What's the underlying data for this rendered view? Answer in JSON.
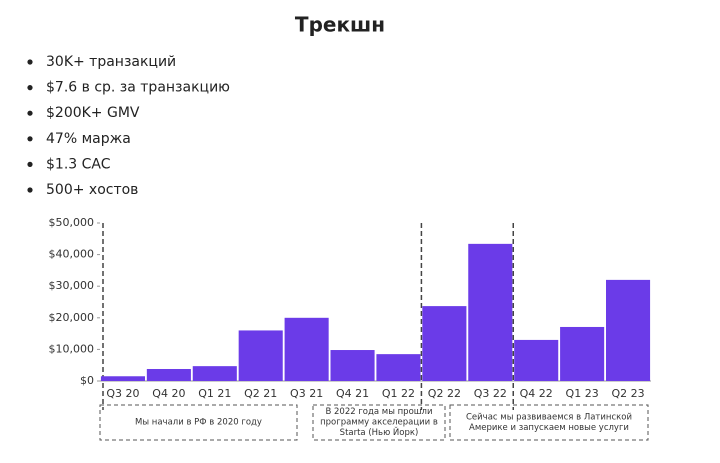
{
  "title": "Трекшн",
  "bullets": [
    "30K+ транзакций",
    "$7.6 в ср. за транзакцию",
    "$200K+ GMV",
    "47% маржа",
    "$1.3 CAC",
    "500+ хостов"
  ],
  "chart_data": {
    "type": "bar",
    "categories": [
      "Q3 20",
      "Q4 20",
      "Q1 21",
      "Q2 21",
      "Q3 21",
      "Q4 21",
      "Q1 22",
      "Q2 22",
      "Q3 22",
      "Q4 22",
      "Q1 23",
      "Q2 23"
    ],
    "values": [
      1500,
      3800,
      4700,
      16000,
      20000,
      9800,
      8500,
      23700,
      43400,
      13000,
      17100,
      32000
    ],
    "color": "#6b3be8",
    "ylim": [
      0,
      50000
    ],
    "yticks": [
      {
        "value": 0,
        "label": "$0"
      },
      {
        "value": 10000,
        "label": "$10,000"
      },
      {
        "value": 20000,
        "label": "$20,000"
      },
      {
        "value": 30000,
        "label": "$30,000"
      },
      {
        "value": 40000,
        "label": "$40,000"
      },
      {
        "value": 50000,
        "label": "$50,000"
      }
    ],
    "annotations": [
      [
        "Мы начали в РФ в 2020 году"
      ],
      [
        "В 2022 года мы прошли",
        "программу акселерации в",
        "Starta (Нью Йорк)"
      ],
      [
        "Сейчас мы развиваемся в Латинской",
        "Америке и запускаем новые услуги"
      ]
    ]
  }
}
